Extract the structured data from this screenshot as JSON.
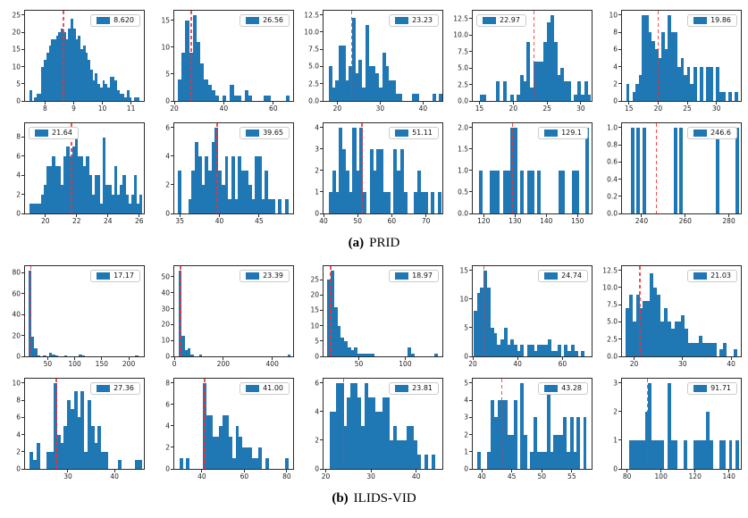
{
  "captions": {
    "a": {
      "prefix": "(a)",
      "title": "PRID"
    },
    "b": {
      "prefix": "(b)",
      "title": "ILIDS-VID"
    }
  },
  "colors": {
    "bar": "#1f77b4",
    "vline": "#ff2a2a",
    "axis": "#2b2b2b",
    "legend_border": "#cccccc",
    "background": "#ffffff"
  },
  "chart_data": [
    {
      "type": "bar",
      "group": "PRID",
      "legend": "8.620",
      "legend_side": "right",
      "vline": 8.62,
      "xlim": [
        7.3,
        11.45
      ],
      "ylim": 26.25,
      "xticks": [
        8,
        9,
        10,
        11
      ],
      "yticks": [
        0,
        5,
        10,
        15,
        20,
        25
      ],
      "bins": {
        "start": 7.45,
        "width": 0.085,
        "heights": [
          3,
          0,
          1,
          2,
          2,
          10,
          12,
          14,
          16,
          18,
          18,
          19,
          20,
          21,
          20,
          18,
          21,
          24,
          21,
          18,
          19,
          15,
          16,
          14,
          12,
          9,
          6,
          8,
          5,
          4,
          6,
          5,
          4,
          7,
          7,
          6,
          3,
          2,
          2,
          1,
          3,
          1,
          0,
          1,
          1
        ]
      }
    },
    {
      "type": "bar",
      "group": "PRID",
      "legend": "26.56",
      "legend_side": "right",
      "vline": 26.56,
      "xlim": [
        20,
        68
      ],
      "ylim": 16.8,
      "xticks": [
        20,
        40,
        60
      ],
      "yticks": [
        0,
        5,
        10,
        15
      ],
      "bins": {
        "start": 21.5,
        "width": 1.5,
        "heights": [
          4,
          9,
          15,
          9,
          16,
          11,
          7,
          4,
          3,
          2,
          1,
          0,
          1,
          0,
          3,
          1,
          1,
          0,
          2,
          1,
          0,
          0,
          0,
          1,
          1,
          0,
          0,
          0,
          0,
          1
        ]
      }
    },
    {
      "type": "bar",
      "group": "PRID",
      "legend": "23.23",
      "legend_side": "right",
      "vline": 23.23,
      "xlim": [
        16.8,
        44.5
      ],
      "ylim": 13.1,
      "xticks": [
        20,
        30,
        40
      ],
      "yticks": [
        0,
        2.5,
        5,
        7.5,
        10,
        12.5
      ],
      "ytick_labels": [
        "0.0",
        "2.5",
        "5.0",
        "7.5",
        "10.0",
        "12.5"
      ],
      "bins": {
        "start": 18,
        "width": 0.78,
        "heights": [
          5,
          2,
          3,
          8,
          8,
          3,
          5,
          12,
          4,
          6,
          2,
          11,
          5,
          5,
          4,
          2,
          7,
          5,
          3,
          3,
          1,
          1,
          0,
          0,
          0,
          1,
          1,
          0,
          0,
          0,
          0,
          1,
          0,
          1
        ]
      }
    },
    {
      "type": "bar",
      "group": "PRID",
      "legend": "22.97",
      "legend_side": "left",
      "vline": 22.97,
      "xlim": [
        14,
        31.6
      ],
      "ylim": 13.7,
      "xticks": [
        15,
        20,
        25,
        30
      ],
      "yticks": [
        0,
        2.5,
        5,
        7.5,
        10,
        12.5
      ],
      "ytick_labels": [
        "0.0",
        "2.5",
        "5.0",
        "7.5",
        "10.0",
        "12.5"
      ],
      "bins": {
        "start": 15,
        "width": 0.5,
        "heights": [
          1,
          1,
          0,
          0,
          0,
          3,
          0,
          3,
          0,
          1,
          0,
          1,
          4,
          3,
          9,
          2,
          6,
          6,
          6,
          9,
          12,
          13,
          9,
          4,
          5,
          3,
          3,
          0,
          1,
          3,
          1,
          3,
          1
        ]
      }
    },
    {
      "type": "bar",
      "group": "PRID",
      "legend": "19.86",
      "legend_side": "right",
      "vline": 19.86,
      "xlim": [
        13.8,
        34.2
      ],
      "ylim": 10.5,
      "xticks": [
        15,
        20,
        25,
        30
      ],
      "yticks": [
        0,
        2,
        4,
        6,
        8,
        10
      ],
      "bins": {
        "start": 14.5,
        "width": 0.55,
        "heights": [
          2,
          0,
          1,
          2,
          3,
          10,
          10,
          8,
          7,
          6,
          5,
          8,
          6,
          10,
          8,
          8,
          4,
          5,
          3,
          4,
          2,
          4,
          0,
          4,
          0,
          4,
          4,
          0,
          4,
          1,
          1,
          0,
          1,
          0,
          1
        ]
      }
    },
    {
      "type": "bar",
      "group": "PRID",
      "legend": "21.64",
      "legend_side": "left",
      "vline": 21.64,
      "xlim": [
        18.7,
        26.3
      ],
      "ylim": 9.45,
      "xticks": [
        20,
        22,
        24,
        26
      ],
      "yticks": [
        0,
        2,
        4,
        6,
        8
      ],
      "bins": {
        "start": 19,
        "width": 0.18,
        "heights": [
          1,
          1,
          1,
          1,
          2,
          3,
          5,
          5,
          6,
          5,
          5,
          3,
          6,
          7,
          6,
          7,
          9,
          6,
          6,
          5,
          6,
          4,
          2,
          4,
          4,
          1,
          8,
          3,
          3,
          2,
          5,
          2,
          3,
          4,
          2,
          1,
          2,
          4,
          1,
          2
        ]
      }
    },
    {
      "type": "bar",
      "group": "PRID",
      "legend": "39.65",
      "legend_side": "right",
      "vline": 39.65,
      "xlim": [
        34.3,
        49.3
      ],
      "ylim": 6.3,
      "xticks": [
        35,
        40,
        45
      ],
      "yticks": [
        0,
        2,
        4,
        6
      ],
      "bins": {
        "start": 34.8,
        "width": 0.42,
        "heights": [
          3,
          0,
          0,
          1,
          3,
          5,
          4,
          2,
          4,
          3,
          5,
          6,
          3,
          2,
          4,
          1,
          4,
          1,
          4,
          3,
          3,
          2,
          1,
          4,
          4,
          1,
          3,
          1,
          1,
          0,
          1,
          0,
          1
        ]
      }
    },
    {
      "type": "bar",
      "group": "PRID",
      "legend": "51.11",
      "legend_side": "right",
      "vline": 51.11,
      "xlim": [
        40,
        74.8
      ],
      "ylim": 4.2,
      "xticks": [
        40,
        50,
        60,
        70
      ],
      "yticks": [
        0,
        1,
        2,
        3,
        4
      ],
      "bins": {
        "start": 41.5,
        "width": 1.0,
        "heights": [
          1,
          2,
          1,
          4,
          3,
          2,
          1,
          4,
          2,
          4,
          1,
          0,
          3,
          2,
          3,
          3,
          1,
          1,
          0,
          3,
          2,
          3,
          1,
          0,
          0,
          1,
          2,
          1,
          1,
          0,
          1,
          0,
          1
        ]
      }
    },
    {
      "type": "bar",
      "group": "PRID",
      "legend": "129.1",
      "legend_side": "right",
      "vline": 129.1,
      "xlim": [
        116.5,
        154.5
      ],
      "ylim": 2.1,
      "xticks": [
        120,
        130,
        140,
        150
      ],
      "yticks": [
        0,
        0.5,
        1,
        1.5,
        2
      ],
      "ytick_labels": [
        "0.0",
        "0.5",
        "1.0",
        "1.5",
        "2.0"
      ],
      "bins": {
        "start": 118.5,
        "width": 1.1,
        "heights": [
          1,
          0,
          0,
          1,
          1,
          1,
          0,
          1,
          1,
          2,
          2,
          0,
          1,
          0,
          1,
          1,
          0,
          1,
          0,
          0,
          0,
          0,
          0,
          1,
          1,
          0,
          0,
          1,
          1,
          0,
          0,
          2
        ]
      }
    },
    {
      "type": "bar",
      "group": "PRID",
      "legend": "246.6",
      "legend_side": "right",
      "vline": 246.6,
      "xlim": [
        231,
        285.5
      ],
      "ylim": 1.05,
      "xticks": [
        240,
        260,
        280
      ],
      "yticks": [
        0,
        0.2,
        0.4,
        0.6,
        0.8,
        1
      ],
      "ytick_labels": [
        "0.0",
        "0.2",
        "0.4",
        "0.6",
        "0.8",
        "1.0"
      ],
      "bars": {
        "width": 1.6,
        "points": [
          [
            235.2,
            1
          ],
          [
            237.4,
            1
          ],
          [
            240.4,
            1
          ],
          [
            254.9,
            1
          ],
          [
            257.1,
            1
          ],
          [
            273.9,
            1
          ],
          [
            282.9,
            1
          ]
        ]
      }
    },
    {
      "type": "bar",
      "group": "ILIDS-VID",
      "legend": "17.17",
      "legend_side": "right",
      "vline": 17.17,
      "xlim": [
        8,
        228
      ],
      "ylim": 86,
      "xticks": [
        50,
        100,
        150,
        200
      ],
      "yticks": [
        0,
        20,
        40,
        60,
        80
      ],
      "bins": {
        "start": 14,
        "width": 5.5,
        "heights": [
          82,
          19,
          8,
          1,
          0,
          1,
          0,
          3,
          2,
          1,
          0,
          0,
          1,
          0,
          0,
          0,
          0,
          2,
          1,
          0,
          0,
          0,
          0,
          0,
          0,
          0,
          0,
          0,
          0,
          0,
          0,
          0,
          0,
          0,
          0,
          0,
          1
        ]
      }
    },
    {
      "type": "bar",
      "group": "ILIDS-VID",
      "legend": "23.39",
      "legend_side": "right",
      "vline": 23.39,
      "xlim": [
        0,
        485
      ],
      "ylim": 56.7,
      "xticks": [
        0,
        200,
        400
      ],
      "yticks": [
        0,
        10,
        20,
        30,
        40,
        50
      ],
      "bins": {
        "start": 18,
        "width": 12,
        "heights": [
          54,
          13,
          4,
          5,
          1,
          0,
          0,
          1,
          0,
          0,
          0,
          0,
          0,
          0,
          0,
          0,
          0,
          0,
          0,
          0,
          0,
          0,
          0,
          0,
          0,
          0,
          0,
          0,
          0,
          0,
          0,
          0,
          0,
          0,
          0,
          0,
          0,
          1
        ]
      }
    },
    {
      "type": "bar",
      "group": "ILIDS-VID",
      "legend": "18.97",
      "legend_side": "right",
      "vline": 18.97,
      "xlim": [
        12,
        140
      ],
      "ylim": 29.4,
      "xticks": [
        50,
        100
      ],
      "yticks": [
        0,
        5,
        10,
        15,
        20,
        25
      ],
      "bins": {
        "start": 16,
        "width": 3.6,
        "heights": [
          25,
          28,
          16,
          10,
          6,
          5,
          3,
          2,
          3,
          1,
          1,
          1,
          1,
          1,
          0,
          0,
          0,
          0,
          0,
          0,
          0,
          0,
          0,
          0,
          3,
          1,
          0,
          0,
          0,
          0,
          0,
          0,
          1
        ]
      }
    },
    {
      "type": "bar",
      "group": "ILIDS-VID",
      "legend": "24.74",
      "legend_side": "right",
      "vline": 24.74,
      "xlim": [
        20,
        73
      ],
      "ylim": 15.75,
      "xticks": [
        20,
        40,
        60
      ],
      "yticks": [
        0,
        5,
        10,
        15
      ],
      "bins": {
        "start": 20.3,
        "width": 1.5,
        "heights": [
          8,
          11,
          12,
          15,
          12,
          5,
          4,
          2,
          3,
          5,
          2,
          3,
          2,
          1,
          2,
          0,
          2,
          2,
          1,
          2,
          2,
          2,
          3,
          1,
          1,
          2,
          0,
          2,
          1,
          2,
          1,
          0,
          1
        ]
      }
    },
    {
      "type": "bar",
      "group": "ILIDS-VID",
      "legend": "21.03",
      "legend_side": "right",
      "vline": 21.03,
      "xlim": [
        17.5,
        42
      ],
      "ylim": 13.1,
      "xticks": [
        20,
        30,
        40
      ],
      "yticks": [
        0,
        2.5,
        5,
        7.5,
        10,
        12.5
      ],
      "ytick_labels": [
        "0.0",
        "2.5",
        "5.0",
        "7.5",
        "10.0",
        "12.5"
      ],
      "bins": {
        "start": 18.2,
        "width": 0.72,
        "heights": [
          7,
          9,
          5,
          9,
          7,
          8,
          8,
          12,
          10,
          9,
          5,
          7,
          5,
          4,
          5,
          5,
          6,
          4,
          2,
          2,
          2,
          3,
          2,
          2,
          2,
          2,
          0,
          1,
          2,
          0,
          0,
          1
        ]
      }
    },
    {
      "type": "bar",
      "group": "ILIDS-VID",
      "legend": "27.36",
      "legend_side": "right",
      "vline": 27.36,
      "xlim": [
        20.8,
        46.3
      ],
      "ylim": 10.5,
      "xticks": [
        30,
        40
      ],
      "yticks": [
        0,
        2,
        4,
        6,
        8,
        10
      ],
      "bins": {
        "start": 21.8,
        "width": 0.73,
        "heights": [
          2,
          1,
          3,
          0,
          0,
          2,
          2,
          10,
          4,
          3,
          5,
          8,
          7,
          9,
          6,
          9,
          2,
          8,
          5,
          3,
          5,
          2,
          2,
          0,
          0,
          0,
          1,
          0,
          0,
          0,
          0,
          1,
          1
        ]
      }
    },
    {
      "type": "bar",
      "group": "ILIDS-VID",
      "legend": "41.00",
      "legend_side": "right",
      "vline": 41.0,
      "xlim": [
        27,
        83
      ],
      "ylim": 8.4,
      "xticks": [
        40,
        60,
        80
      ],
      "yticks": [
        0,
        2,
        4,
        6,
        8
      ],
      "bins": {
        "start": 29.5,
        "width": 1.55,
        "heights": [
          1,
          0,
          1,
          0,
          0,
          0,
          0,
          8,
          5,
          5,
          3,
          3,
          4,
          5,
          5,
          3,
          1,
          4,
          3,
          2,
          2,
          2,
          1,
          1,
          2,
          0,
          1,
          0,
          0,
          0,
          0,
          0,
          1
        ]
      }
    },
    {
      "type": "bar",
      "group": "ILIDS-VID",
      "legend": "23.81",
      "legend_side": "right",
      "vline": 23.81,
      "xlim": [
        19.5,
        45.8
      ],
      "ylim": 6.3,
      "xticks": [
        20,
        30,
        40
      ],
      "yticks": [
        0,
        2,
        4,
        6
      ],
      "bins": {
        "start": 20.8,
        "width": 0.78,
        "heights": [
          4,
          4,
          6,
          6,
          3,
          5,
          6,
          6,
          5,
          3,
          6,
          5,
          5,
          4,
          4,
          5,
          5,
          2,
          3,
          2,
          2,
          2,
          3,
          3,
          2,
          1,
          0,
          1,
          0,
          1
        ]
      }
    },
    {
      "type": "bar",
      "group": "ILIDS-VID",
      "legend": "43.28",
      "legend_side": "right",
      "vline": 43.28,
      "xlim": [
        38.5,
        58.3
      ],
      "ylim": 5.25,
      "xticks": [
        40,
        45,
        50,
        55
      ],
      "yticks": [
        0,
        1,
        2,
        3,
        4,
        5
      ],
      "bins": {
        "start": 39.3,
        "width": 0.55,
        "heights": [
          1,
          0,
          0,
          1,
          4,
          3,
          4,
          4,
          4,
          2,
          2,
          4,
          0,
          5,
          2,
          0,
          1,
          3,
          1,
          1,
          1,
          5,
          1,
          2,
          2,
          2,
          3,
          1,
          3,
          1,
          3,
          0,
          3
        ]
      }
    },
    {
      "type": "bar",
      "group": "ILIDS-VID",
      "legend": "91.71",
      "legend_side": "right",
      "vline": 91.71,
      "xlim": [
        77,
        147
      ],
      "ylim": 3.15,
      "xticks": [
        80,
        100,
        120,
        140
      ],
      "yticks": [
        0,
        1,
        2,
        3
      ],
      "bins": {
        "start": 81,
        "width": 1.9,
        "heights": [
          1,
          1,
          1,
          1,
          1,
          2,
          3,
          1,
          1,
          1,
          1,
          0,
          3,
          1,
          1,
          0,
          0,
          1,
          0,
          0,
          1,
          1,
          1,
          1,
          2,
          1,
          0,
          0,
          1,
          1,
          0,
          1,
          0,
          1
        ]
      }
    }
  ]
}
